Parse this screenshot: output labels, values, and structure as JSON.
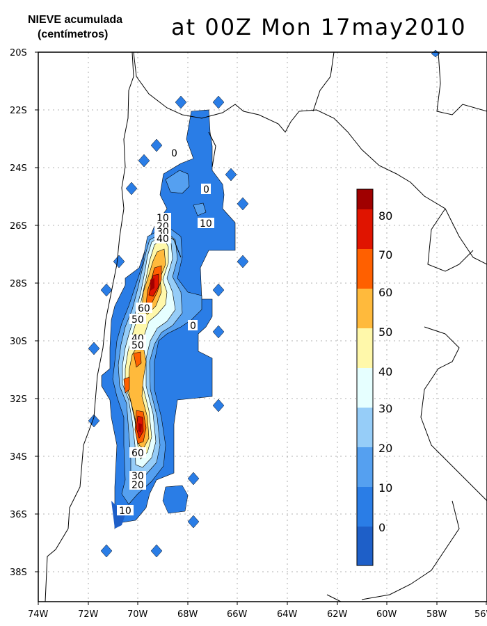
{
  "title": {
    "main": "NIEVE acumulada",
    "sub": "(centímetros)",
    "time": "at 00Z Mon 17may2010"
  },
  "axes": {
    "x_ticks": [
      "74W",
      "72W",
      "70W",
      "68W",
      "66W",
      "64W",
      "62W",
      "60W",
      "58W",
      "56W"
    ],
    "y_ticks": [
      "20S",
      "22S",
      "24S",
      "26S",
      "28S",
      "30S",
      "32S",
      "34S",
      "36S",
      "38S"
    ],
    "x_range": [
      -74,
      -56
    ],
    "y_range": [
      -20,
      -39
    ]
  },
  "colorbar": {
    "levels": [
      "0",
      "10",
      "20",
      "30",
      "40",
      "50",
      "60",
      "70",
      "80"
    ],
    "colors": [
      "#1e5fc8",
      "#2a7de6",
      "#55a0f0",
      "#96cdf8",
      "#e6ffff",
      "#fff8aa",
      "#ffba3c",
      "#ff6000",
      "#e01400",
      "#a00000"
    ]
  },
  "contour_labels": [
    "0",
    "0",
    "0",
    "10",
    "10",
    "20",
    "30",
    "40",
    "60",
    "50",
    "40",
    "50",
    "60",
    "30",
    "20",
    "10"
  ],
  "map": {
    "description_colors": {
      "land_line": "#000000",
      "grid": "#999999"
    }
  }
}
